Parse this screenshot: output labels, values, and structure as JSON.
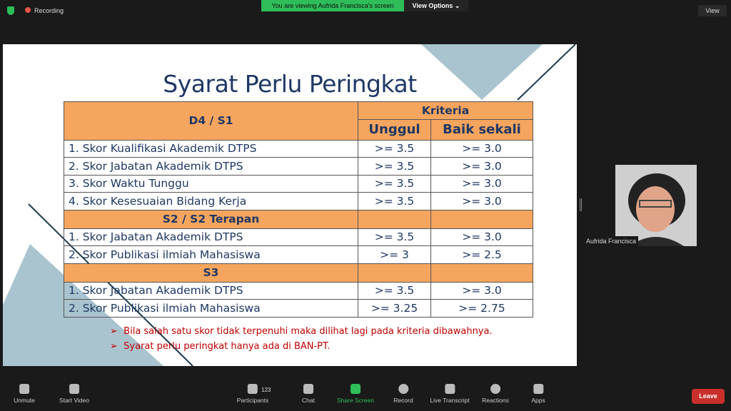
{
  "topbar": {
    "recording": "Recording",
    "viewing": "You are viewing Aufrida Francisca's screen",
    "view_options": "View Options ⌄",
    "view": "View"
  },
  "slide": {
    "title": "Syarat Perlu Peringkat",
    "header": {
      "program": "D4 / S1",
      "kriteria": "Kriteria",
      "col1": "Unggul",
      "col2": "Baik sekali"
    },
    "rows": [
      {
        "type": "row",
        "label": "1. Skor Kualifikasi Akademik DTPS",
        "a": ">= 3.5",
        "b": ">= 3.0"
      },
      {
        "type": "row",
        "label": "2. Skor Jabatan Akademik DTPS",
        "a": ">= 3.5",
        "b": ">= 3.0"
      },
      {
        "type": "row",
        "label": "3. Skor Waktu Tunggu",
        "a": ">= 3.5",
        "b": ">= 3.0"
      },
      {
        "type": "row",
        "label": "4. Skor Kesesuaian Bidang Kerja",
        "a": ">= 3.5",
        "b": ">= 3.0"
      },
      {
        "type": "section",
        "label": "S2 / S2 Terapan"
      },
      {
        "type": "row",
        "label": "1. Skor Jabatan Akademik  DTPS",
        "a": ">= 3.5",
        "b": ">= 3.0"
      },
      {
        "type": "row",
        "label": "2. Skor Publikasi ilmiah Mahasiswa",
        "a": ">= 3",
        "b": ">= 2.5"
      },
      {
        "type": "section",
        "label": "S3"
      },
      {
        "type": "row",
        "label": "1. Skor Jabatan Akademik  DTPS",
        "a": ">= 3.5",
        "b": ">= 3.0"
      },
      {
        "type": "row",
        "label": "2. Skor Publikasi ilmiah Mahasiswa",
        "a": ">= 3.25",
        "b": ">= 2.75"
      }
    ],
    "notes": [
      "Bila salah satu skor tidak terpenuhi maka dilihat lagi pada kriteria dibawahnya.",
      "Syarat perlu peringkat hanya ada di BAN-PT."
    ]
  },
  "participant": {
    "name": "Aufrida Francisca"
  },
  "toolbar": {
    "unmute": "Unmute",
    "start_video": "Start Video",
    "participants": "Participants",
    "participant_count": "123",
    "chat": "Chat",
    "share_screen": "Share Screen",
    "record": "Record",
    "live_transcript": "Live Transcript",
    "reactions": "Reactions",
    "apps": "Apps",
    "leave": "Leave"
  },
  "colors": {
    "accent_green": "#2ebd59",
    "table_header": "#f6a55e",
    "title": "#1f3864",
    "note": "#c00000",
    "leave": "#c9302c"
  }
}
